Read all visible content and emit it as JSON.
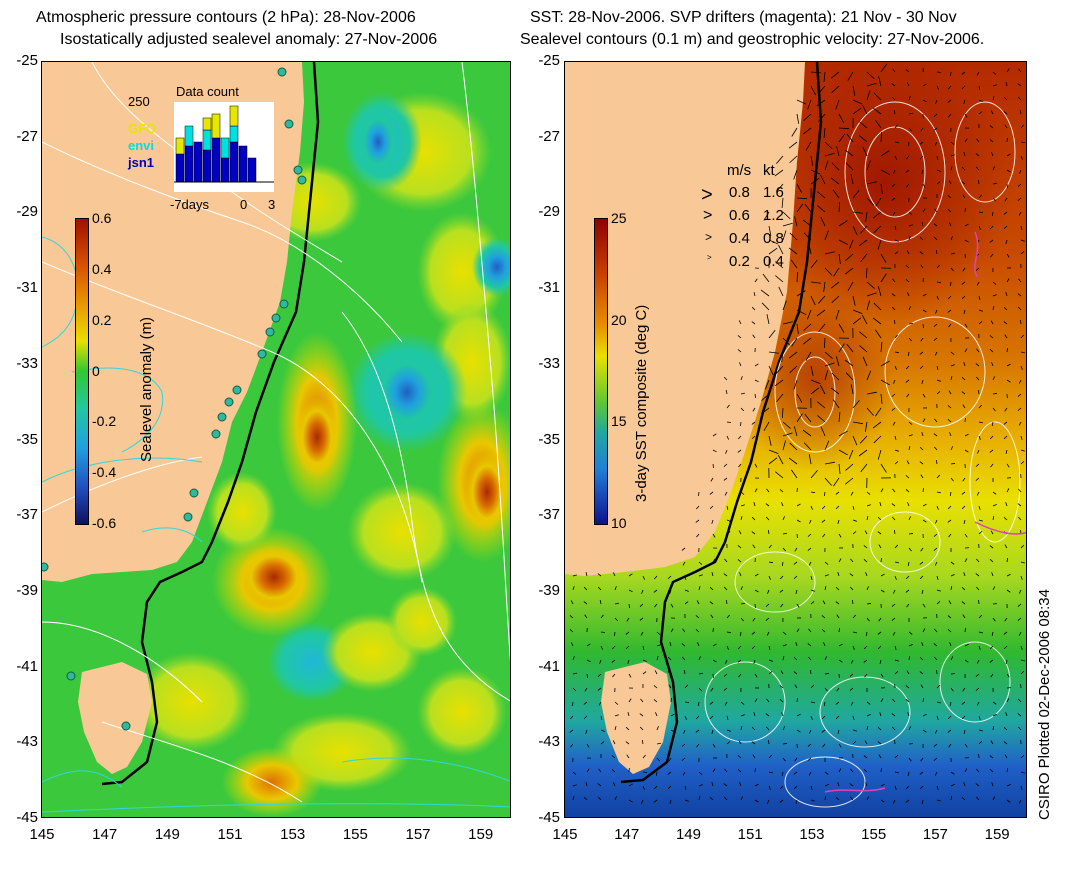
{
  "left_panel": {
    "title_line1": "Atmospheric pressure contours (2 hPa): 28-Nov-2006",
    "title_line2": "Isostatically adjusted sealevel anomaly: 27-Nov-2006",
    "y_ticks": [
      "-25",
      "-27",
      "-29",
      "-31",
      "-33",
      "-35",
      "-37",
      "-39",
      "-41",
      "-43",
      "-45"
    ],
    "x_ticks": [
      "145",
      "147",
      "149",
      "151",
      "153",
      "155",
      "157",
      "159"
    ],
    "colorbar": {
      "label": "Sealevel anomaly (m)",
      "ticks": [
        "0.6",
        "0.4",
        "0.2",
        "0",
        "-0.2",
        "-0.4",
        "-0.6"
      ]
    },
    "inset": {
      "title": "Data count",
      "y_max_label": "250",
      "x_labels": [
        "-7days",
        "0",
        "3"
      ],
      "legend": [
        {
          "name": "GFO",
          "color": "#e6e600"
        },
        {
          "name": "envi",
          "color": "#00e0e0"
        },
        {
          "name": "jsn1",
          "color": "#0000c0"
        }
      ],
      "bars": [
        {
          "jsn1": 0.35,
          "envi": 0.0,
          "GFO": 0.2
        },
        {
          "jsn1": 0.45,
          "envi": 0.25,
          "GFO": 0.0
        },
        {
          "jsn1": 0.5,
          "envi": 0.0,
          "GFO": 0.0
        },
        {
          "jsn1": 0.4,
          "envi": 0.25,
          "GFO": 0.15
        },
        {
          "jsn1": 0.55,
          "envi": 0.0,
          "GFO": 0.3
        },
        {
          "jsn1": 0.3,
          "envi": 0.25,
          "GFO": 0.0
        },
        {
          "jsn1": 0.5,
          "envi": 0.2,
          "GFO": 0.25
        },
        {
          "jsn1": 0.45,
          "envi": 0.0,
          "GFO": 0.0
        },
        {
          "jsn1": 0.3,
          "envi": 0.0,
          "GFO": 0.0
        }
      ]
    }
  },
  "right_panel": {
    "title_line1": "SST: 28-Nov-2006. SVP drifters (magenta): 21 Nov - 30 Nov",
    "title_line2": "Sealevel contours (0.1 m) and geostrophic velocity: 27-Nov-2006.",
    "y_ticks": [
      "-25",
      "-27",
      "-29",
      "-31",
      "-33",
      "-35",
      "-37",
      "-39",
      "-41",
      "-43",
      "-45"
    ],
    "x_ticks": [
      "145",
      "147",
      "149",
      "151",
      "153",
      "155",
      "157",
      "159"
    ],
    "colorbar": {
      "label": "3-day SST composite (deg C)",
      "ticks": [
        "25",
        "20",
        "15",
        "10"
      ]
    },
    "speed_legend": {
      "header_ms": "m/s",
      "header_kt": "kt",
      "rows": [
        {
          "ms": "0.8",
          "kt": "1.6"
        },
        {
          "ms": "0.6",
          "kt": "1.2"
        },
        {
          "ms": "0.4",
          "kt": "0.8"
        },
        {
          "ms": "0.2",
          "kt": "0.4"
        }
      ]
    },
    "footer": "CSIRO Plotted 02-Dec-2006 08:34"
  }
}
